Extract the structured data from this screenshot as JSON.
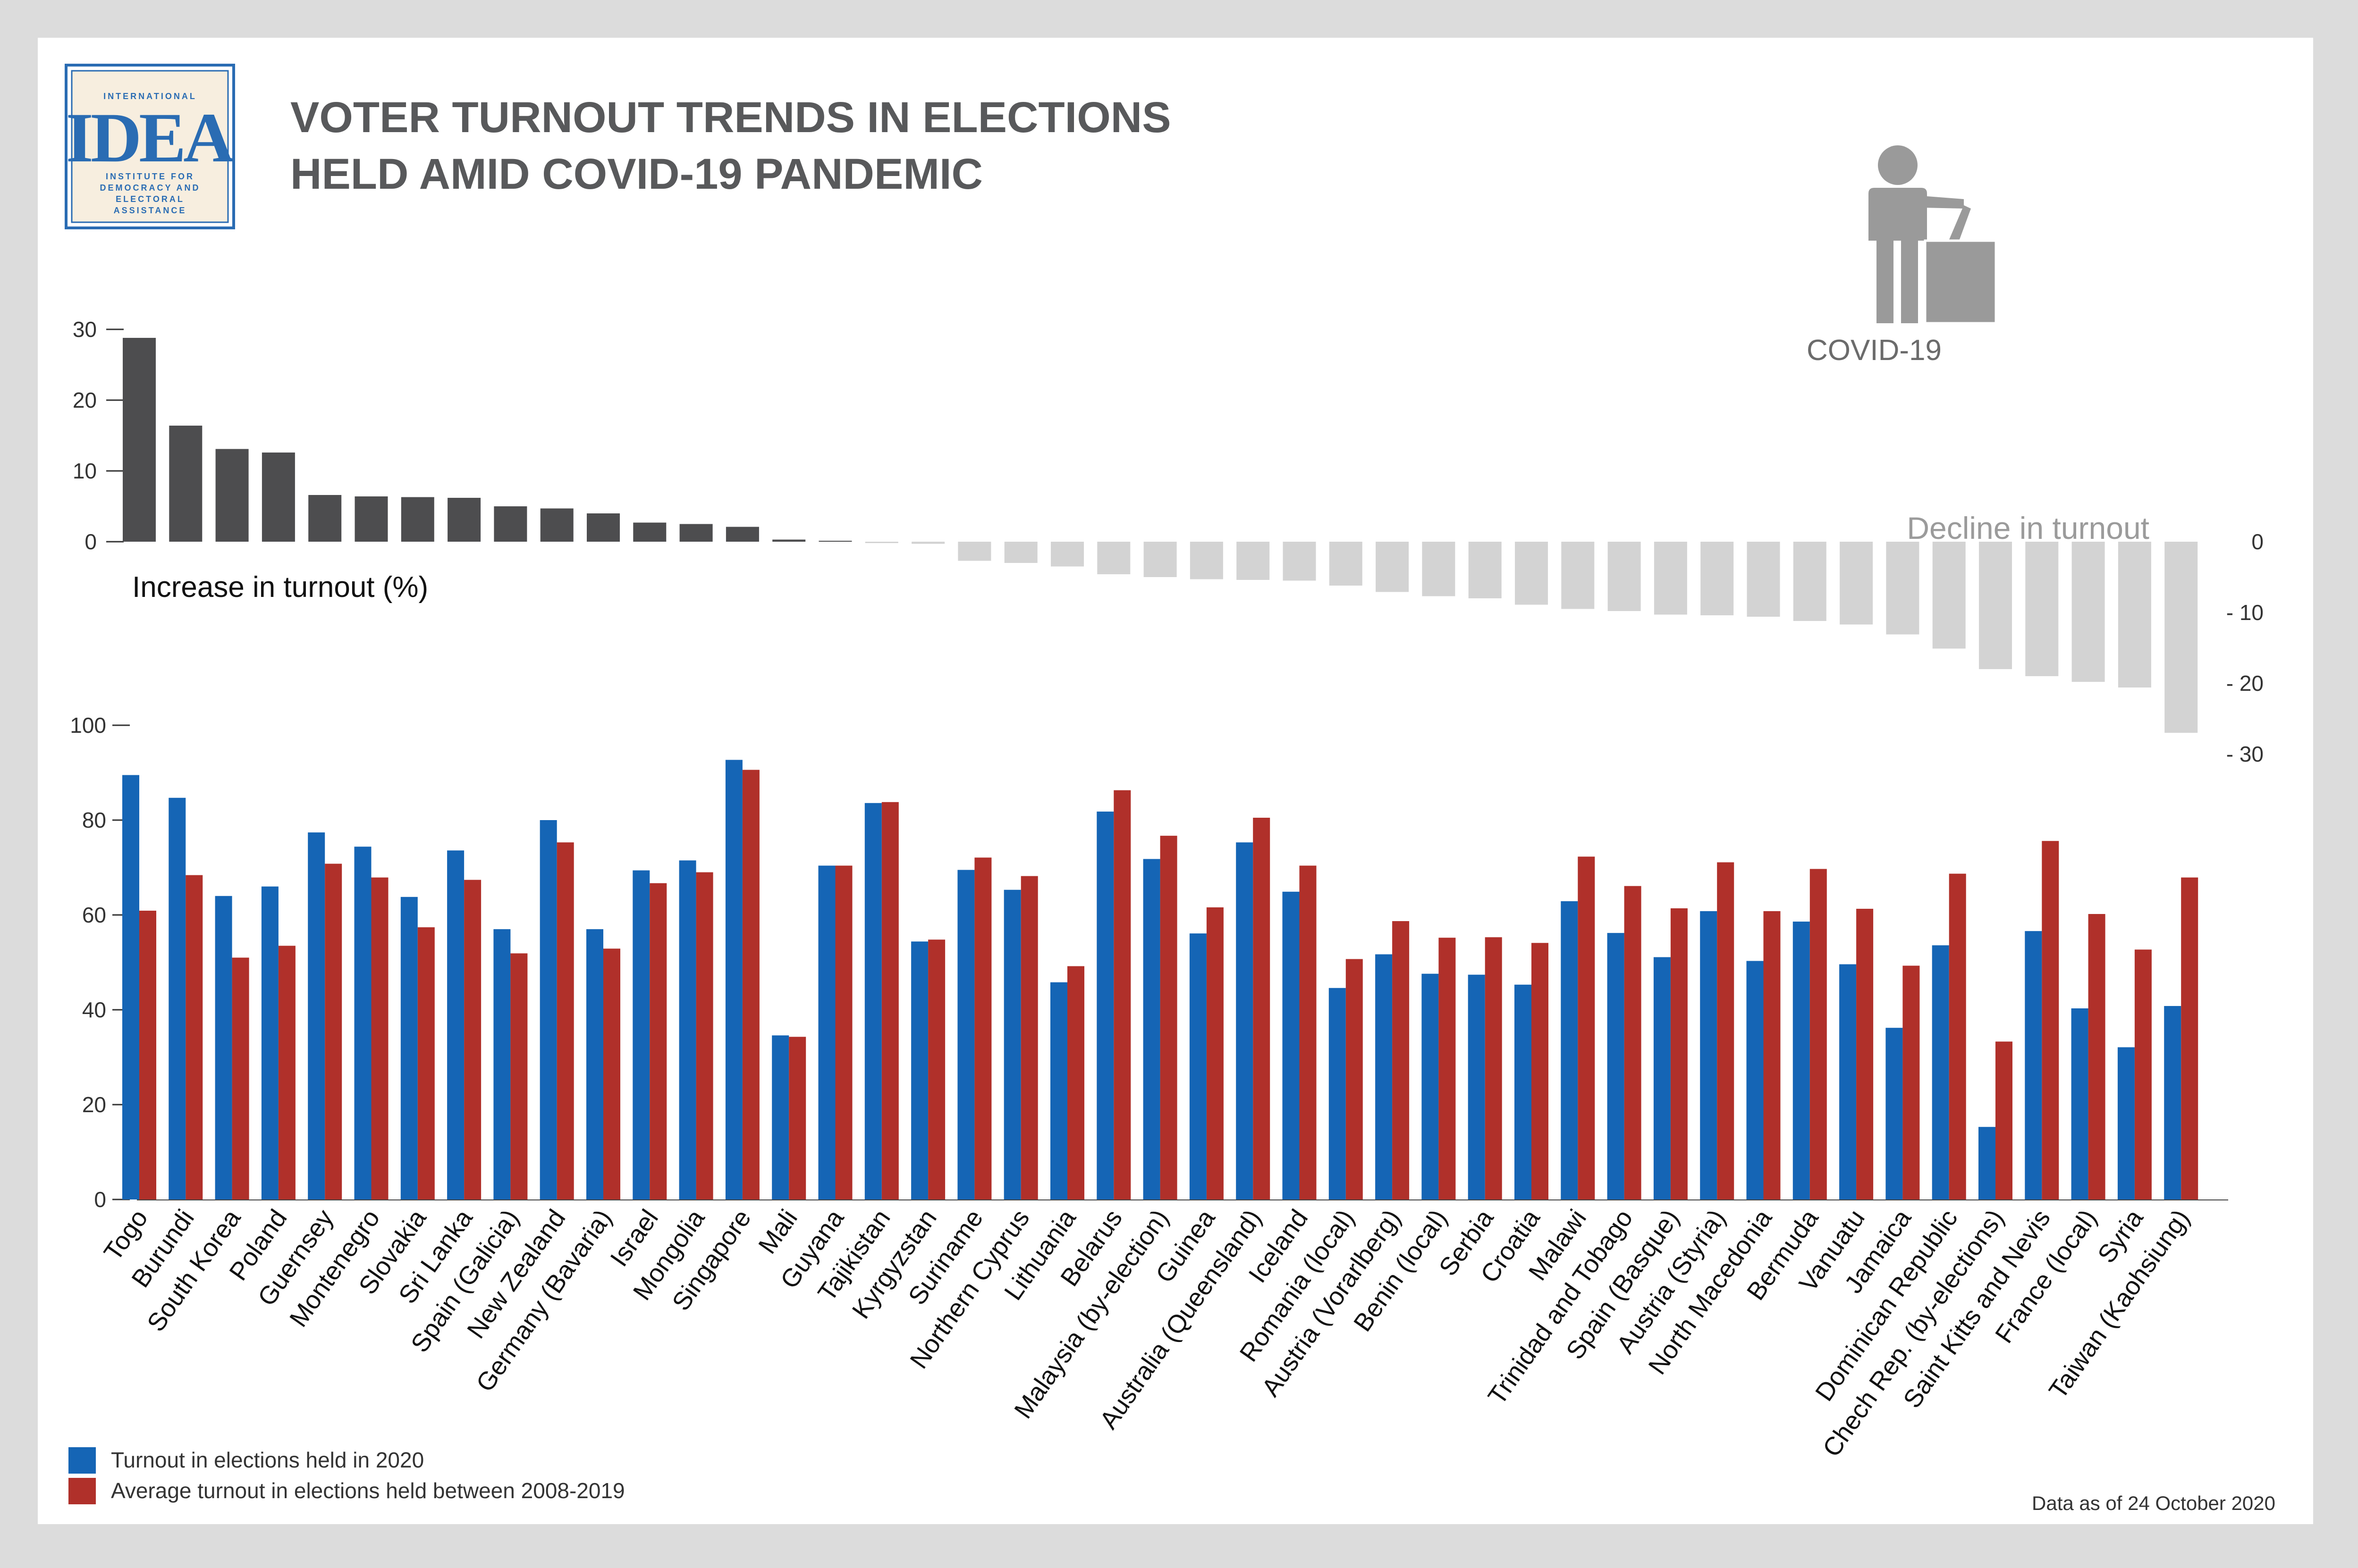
{
  "title": {
    "line1": "VOTER TURNOUT TRENDS IN ELECTIONS",
    "line2": "HELD AMID COVID-19 PANDEMIC"
  },
  "logo": {
    "top": "INTERNATIONAL",
    "main": "IDEA",
    "sub": [
      "INSTITUTE FOR",
      "DEMOCRACY AND",
      "ELECTORAL",
      "ASSISTANCE"
    ]
  },
  "icon": {
    "name": "voter-ballot-box-icon",
    "label": "COVID-19"
  },
  "colors": {
    "increase": "#4d4d4f",
    "decline": "#d3d3d3",
    "turnout2020": "#1565b5",
    "average": "#b0302a"
  },
  "legend": {
    "turnout2020": "Turnout in elections held in 2020",
    "average": "Average turnout in elections held between 2008-2019"
  },
  "footnote": "Data as of 24 October 2020",
  "chart_data": [
    {
      "type": "bar",
      "label_increase": "Increase in turnout (%)",
      "label_decline": "Decline in turnout",
      "ylim": [
        -30,
        30
      ],
      "left_ticks": [
        "0",
        "10",
        "20",
        "30"
      ],
      "right_ticks": [
        "0",
        "- 10",
        "- 20",
        "- 30"
      ],
      "categories": [
        "Togo",
        "Burundi",
        "South Korea",
        "Poland",
        "Guernsey",
        "Montenegro",
        "Slovakia",
        "Sri Lanka",
        "Spain (Galicia)",
        "New Zealand",
        "Germany (Bavaria)",
        "Israel",
        "Mongolia",
        "Singapore",
        "Mali",
        "Guyana",
        "Tajikistan",
        "Kyrgyzstan",
        "Suriname",
        "Northern Cyprus",
        "Lithuania",
        "Belarus",
        "Malaysia (by-election)",
        "Guinea",
        "Australia (Queensland)",
        "Iceland",
        "Romania (local)",
        "Austria (Vorarlberg)",
        "Benin (local)",
        "Serbia",
        "Croatia",
        "Malawi",
        "Trinidad and Tobago",
        "Spain (Basque)",
        "Austria (Styria)",
        "North Macedonia",
        "Bermuda",
        "Vanuatu",
        "Jamaica",
        "Dominican Republic",
        "Chech Rep. (by-elections)",
        "Saint Kitts and Nevis",
        "France (local)",
        "Syria",
        "Taiwan (Kaohsiung)"
      ],
      "values": [
        28.8,
        16.4,
        13.1,
        12.6,
        6.6,
        6.4,
        6.3,
        6.2,
        5.0,
        4.7,
        4.0,
        2.7,
        2.5,
        2.1,
        0.3,
        0.1,
        -0.2,
        -0.3,
        -2.7,
        -3.0,
        -3.5,
        -4.6,
        -5.0,
        -5.3,
        -5.4,
        -5.5,
        -6.2,
        -7.1,
        -7.7,
        -8.0,
        -8.9,
        -9.5,
        -9.8,
        -10.3,
        -10.4,
        -10.6,
        -11.2,
        -11.7,
        -13.1,
        -15.1,
        -18.0,
        -19.0,
        -19.8,
        -20.6,
        -27.0
      ]
    },
    {
      "type": "bar",
      "ylim": [
        0,
        100
      ],
      "y_ticks": [
        "0",
        "20",
        "40",
        "60",
        "80",
        "100"
      ],
      "categories": [
        "Togo",
        "Burundi",
        "South Korea",
        "Poland",
        "Guernsey",
        "Montenegro",
        "Slovakia",
        "Sri Lanka",
        "Spain (Galicia)",
        "New Zealand",
        "Germany (Bavaria)",
        "Israel",
        "Mongolia",
        "Singapore",
        "Mali",
        "Guyana",
        "Tajikistan",
        "Kyrgyzstan",
        "Suriname",
        "Northern Cyprus",
        "Lithuania",
        "Belarus",
        "Malaysia (by-election)",
        "Guinea",
        "Australia (Queensland)",
        "Iceland",
        "Romania (local)",
        "Austria (Vorarlberg)",
        "Benin (local)",
        "Serbia",
        "Croatia",
        "Malawi",
        "Trinidad and Tobago",
        "Spain (Basque)",
        "Austria (Styria)",
        "North Macedonia",
        "Bermuda",
        "Vanuatu",
        "Jamaica",
        "Dominican Republic",
        "Chech Rep. (by-elections)",
        "Saint Kitts and Nevis",
        "France (local)",
        "Syria",
        "Taiwan (Kaohsiung)"
      ],
      "series": [
        {
          "name": "Turnout in elections held in 2020",
          "values": [
            89.5,
            84.7,
            64.0,
            66.0,
            77.4,
            74.4,
            63.8,
            73.6,
            57.0,
            80.0,
            57.0,
            69.4,
            71.5,
            92.7,
            34.6,
            70.4,
            83.6,
            54.4,
            69.5,
            65.3,
            45.8,
            81.8,
            71.8,
            56.1,
            75.3,
            64.9,
            44.6,
            51.7,
            47.6,
            47.4,
            45.3,
            62.9,
            56.2,
            51.1,
            60.8,
            50.3,
            58.6,
            49.6,
            36.2,
            53.6,
            15.3,
            56.6,
            40.3,
            32.1,
            40.8
          ]
        },
        {
          "name": "Average turnout in elections held between 2008-2019",
          "values": [
            60.9,
            68.4,
            51.0,
            53.5,
            70.8,
            67.9,
            57.4,
            67.4,
            51.9,
            75.3,
            52.9,
            66.7,
            69.0,
            90.6,
            34.3,
            70.4,
            83.8,
            54.8,
            72.1,
            68.2,
            49.2,
            86.3,
            76.7,
            61.6,
            80.5,
            70.4,
            50.7,
            58.7,
            55.2,
            55.3,
            54.1,
            72.3,
            66.1,
            61.4,
            71.1,
            60.8,
            69.7,
            61.3,
            49.3,
            68.7,
            33.3,
            75.6,
            60.2,
            52.7,
            67.9
          ]
        }
      ]
    }
  ]
}
